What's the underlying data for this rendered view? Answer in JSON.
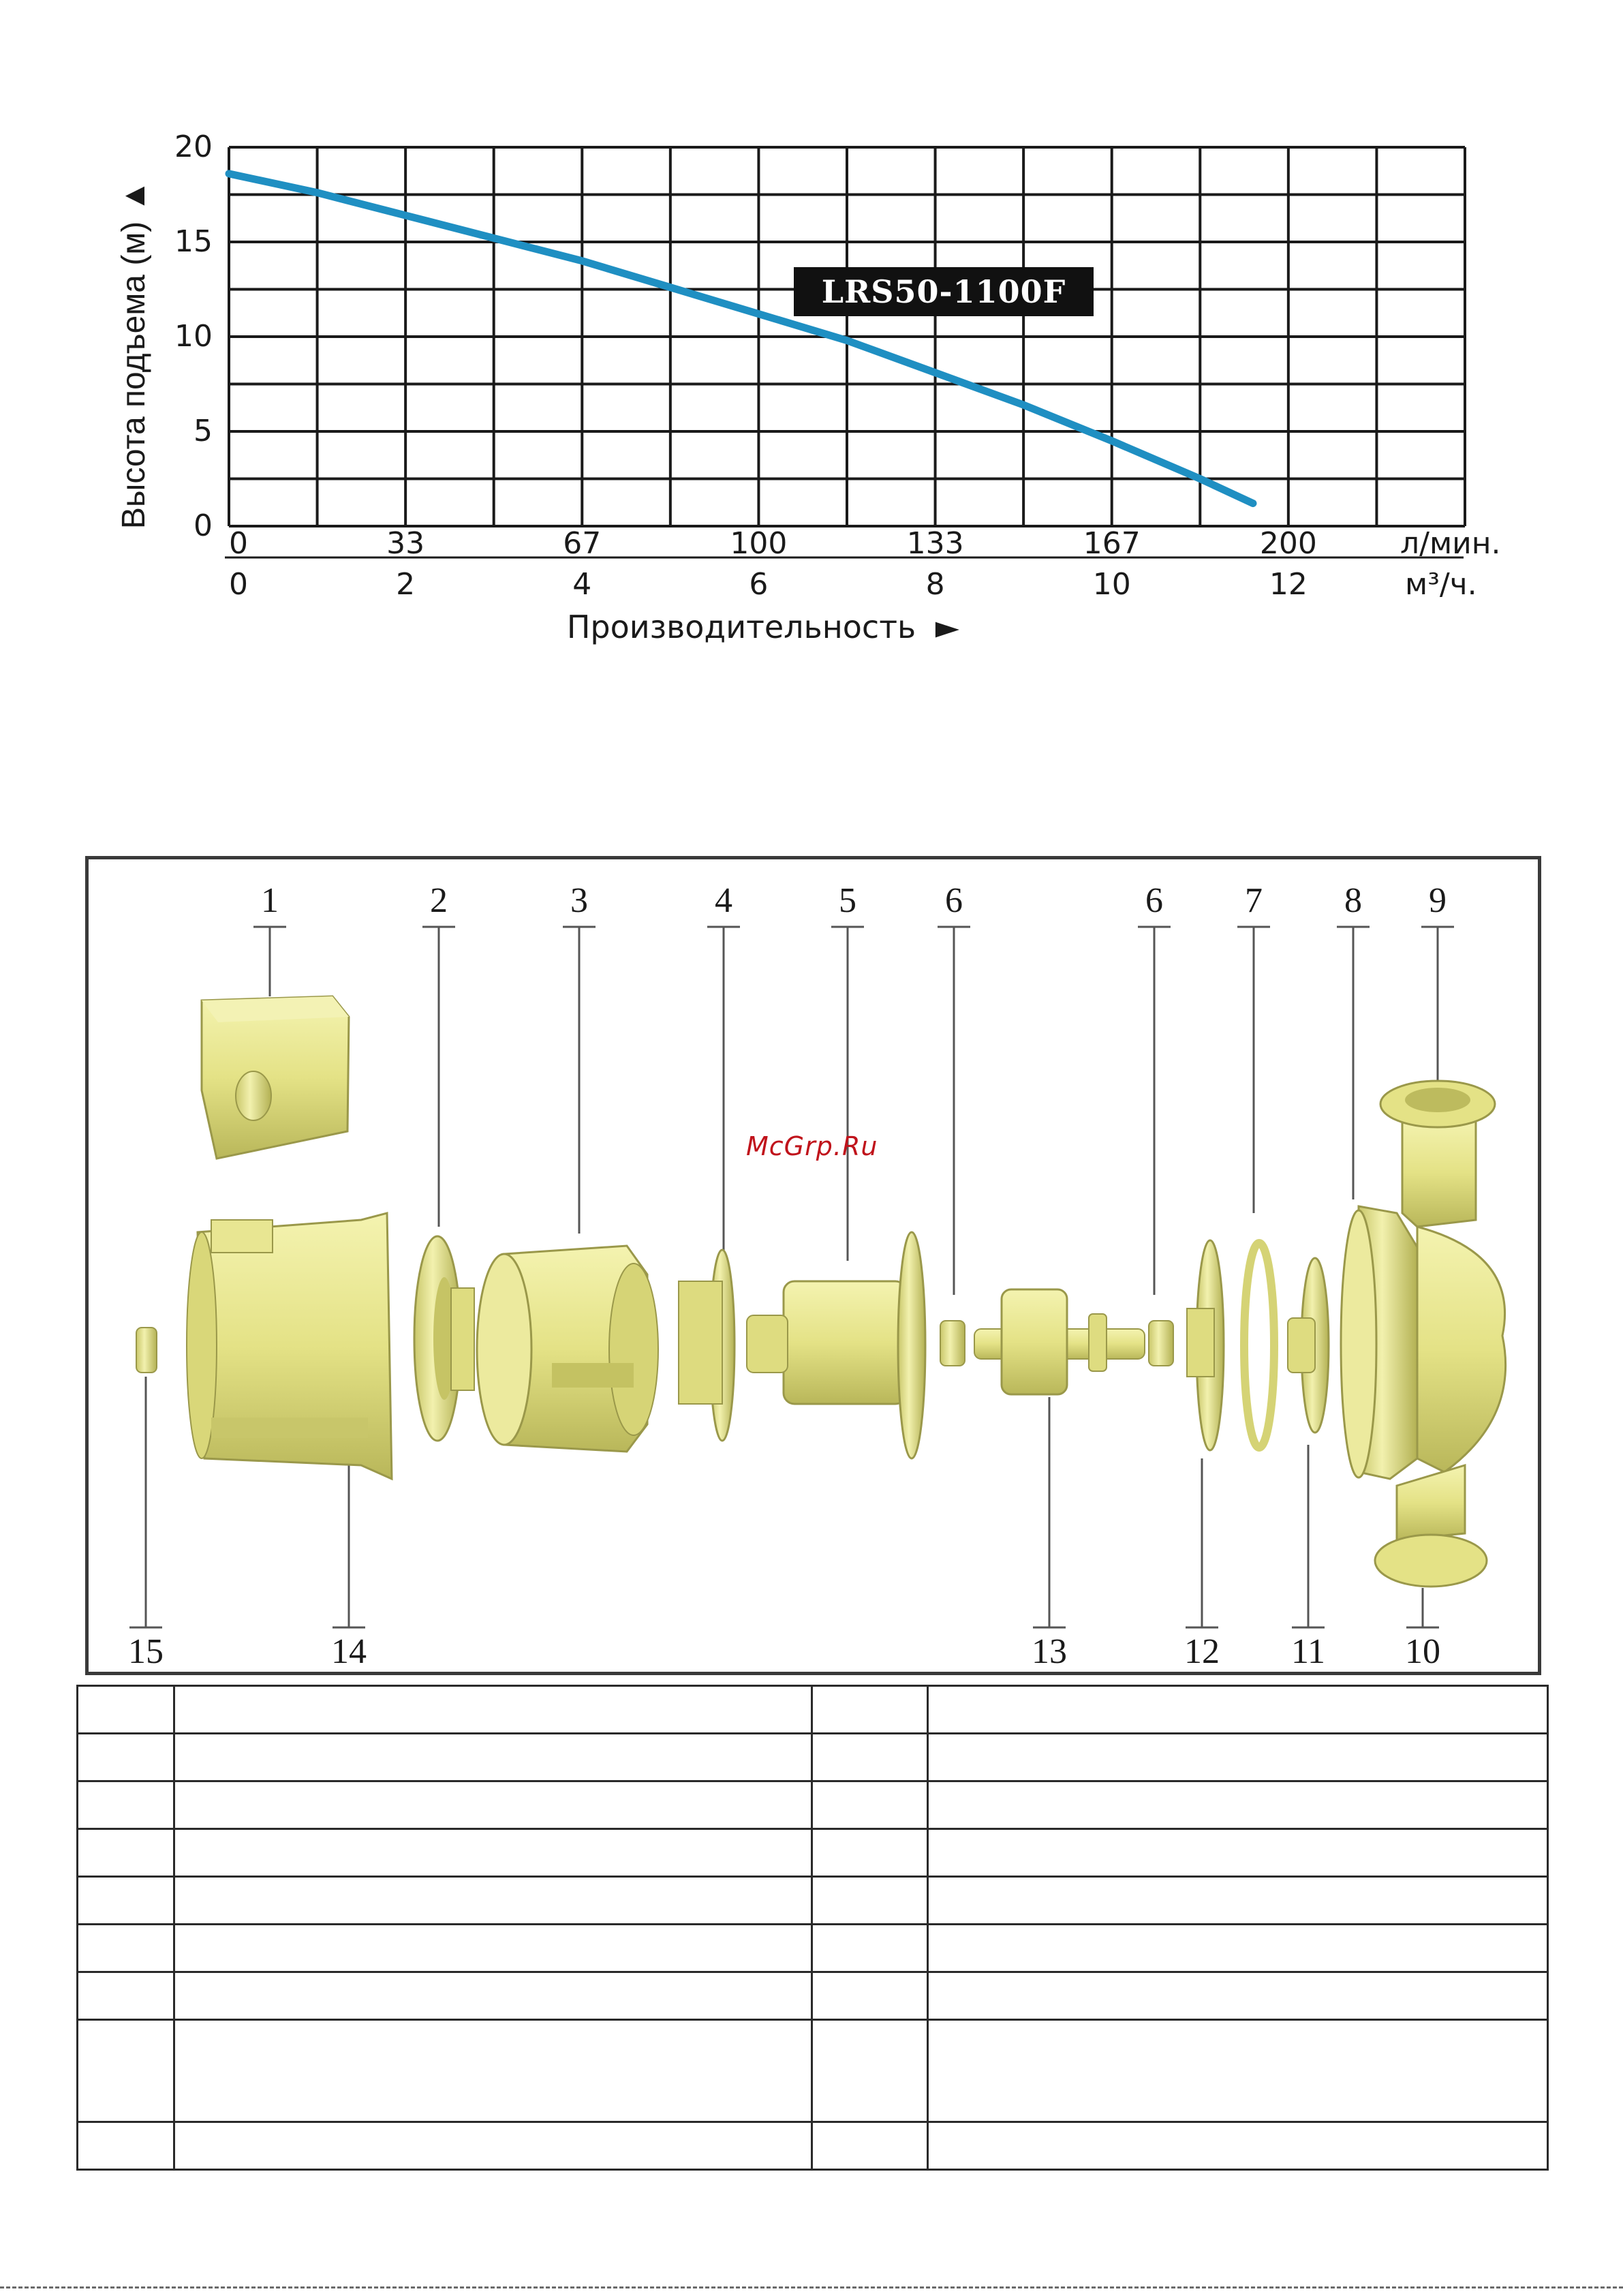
{
  "chart_data": {
    "type": "line",
    "title": "",
    "model_label": "LRS50-1100F",
    "ylabel": "Высота подъема (м)",
    "ylabel_arrow": "▲",
    "xlabel": "Производительность",
    "xlabel_arrow": "►",
    "ylim": [
      0,
      20
    ],
    "xlim_m3h": [
      0,
      14
    ],
    "y_ticks": [
      "0",
      "5",
      "10",
      "15",
      "20"
    ],
    "x_ticks_lmin": [
      "0",
      "33",
      "67",
      "100",
      "133",
      "167",
      "200"
    ],
    "x_unit_lmin": "л/мин.",
    "x_ticks_m3h": [
      "0",
      "2",
      "4",
      "6",
      "8",
      "10",
      "12"
    ],
    "x_unit_m3h": "м³/ч.",
    "grid": true,
    "series": [
      {
        "name": "LRS50-1100F",
        "color": "#1f8fc2",
        "x": [
          0,
          1,
          2,
          3,
          4,
          5,
          6,
          7,
          8,
          9,
          10,
          11,
          11.6
        ],
        "y": [
          18.6,
          17.6,
          16.4,
          15.2,
          14.0,
          12.6,
          11.2,
          9.8,
          8.1,
          6.4,
          4.5,
          2.5,
          1.2
        ]
      }
    ]
  },
  "diagram": {
    "part_numbers_top": [
      "1",
      "2",
      "3",
      "4",
      "5",
      "6",
      "6",
      "7",
      "8",
      "9"
    ],
    "part_numbers_bottom": [
      "15",
      "14",
      "13",
      "12",
      "11",
      "10"
    ],
    "watermark": "McGrp.Ru",
    "part_fill": "#e6e58a",
    "part_shade": "#b4b255"
  },
  "parts_table": {
    "rows": [
      [
        "",
        "",
        "",
        ""
      ],
      [
        "",
        "",
        "",
        ""
      ],
      [
        "",
        "",
        "",
        ""
      ],
      [
        "",
        "",
        "",
        ""
      ],
      [
        "",
        "",
        "",
        ""
      ],
      [
        "",
        "",
        "",
        ""
      ],
      [
        "",
        "",
        "",
        ""
      ],
      [
        "",
        "",
        "",
        ""
      ],
      [
        "",
        "",
        "",
        ""
      ]
    ]
  }
}
